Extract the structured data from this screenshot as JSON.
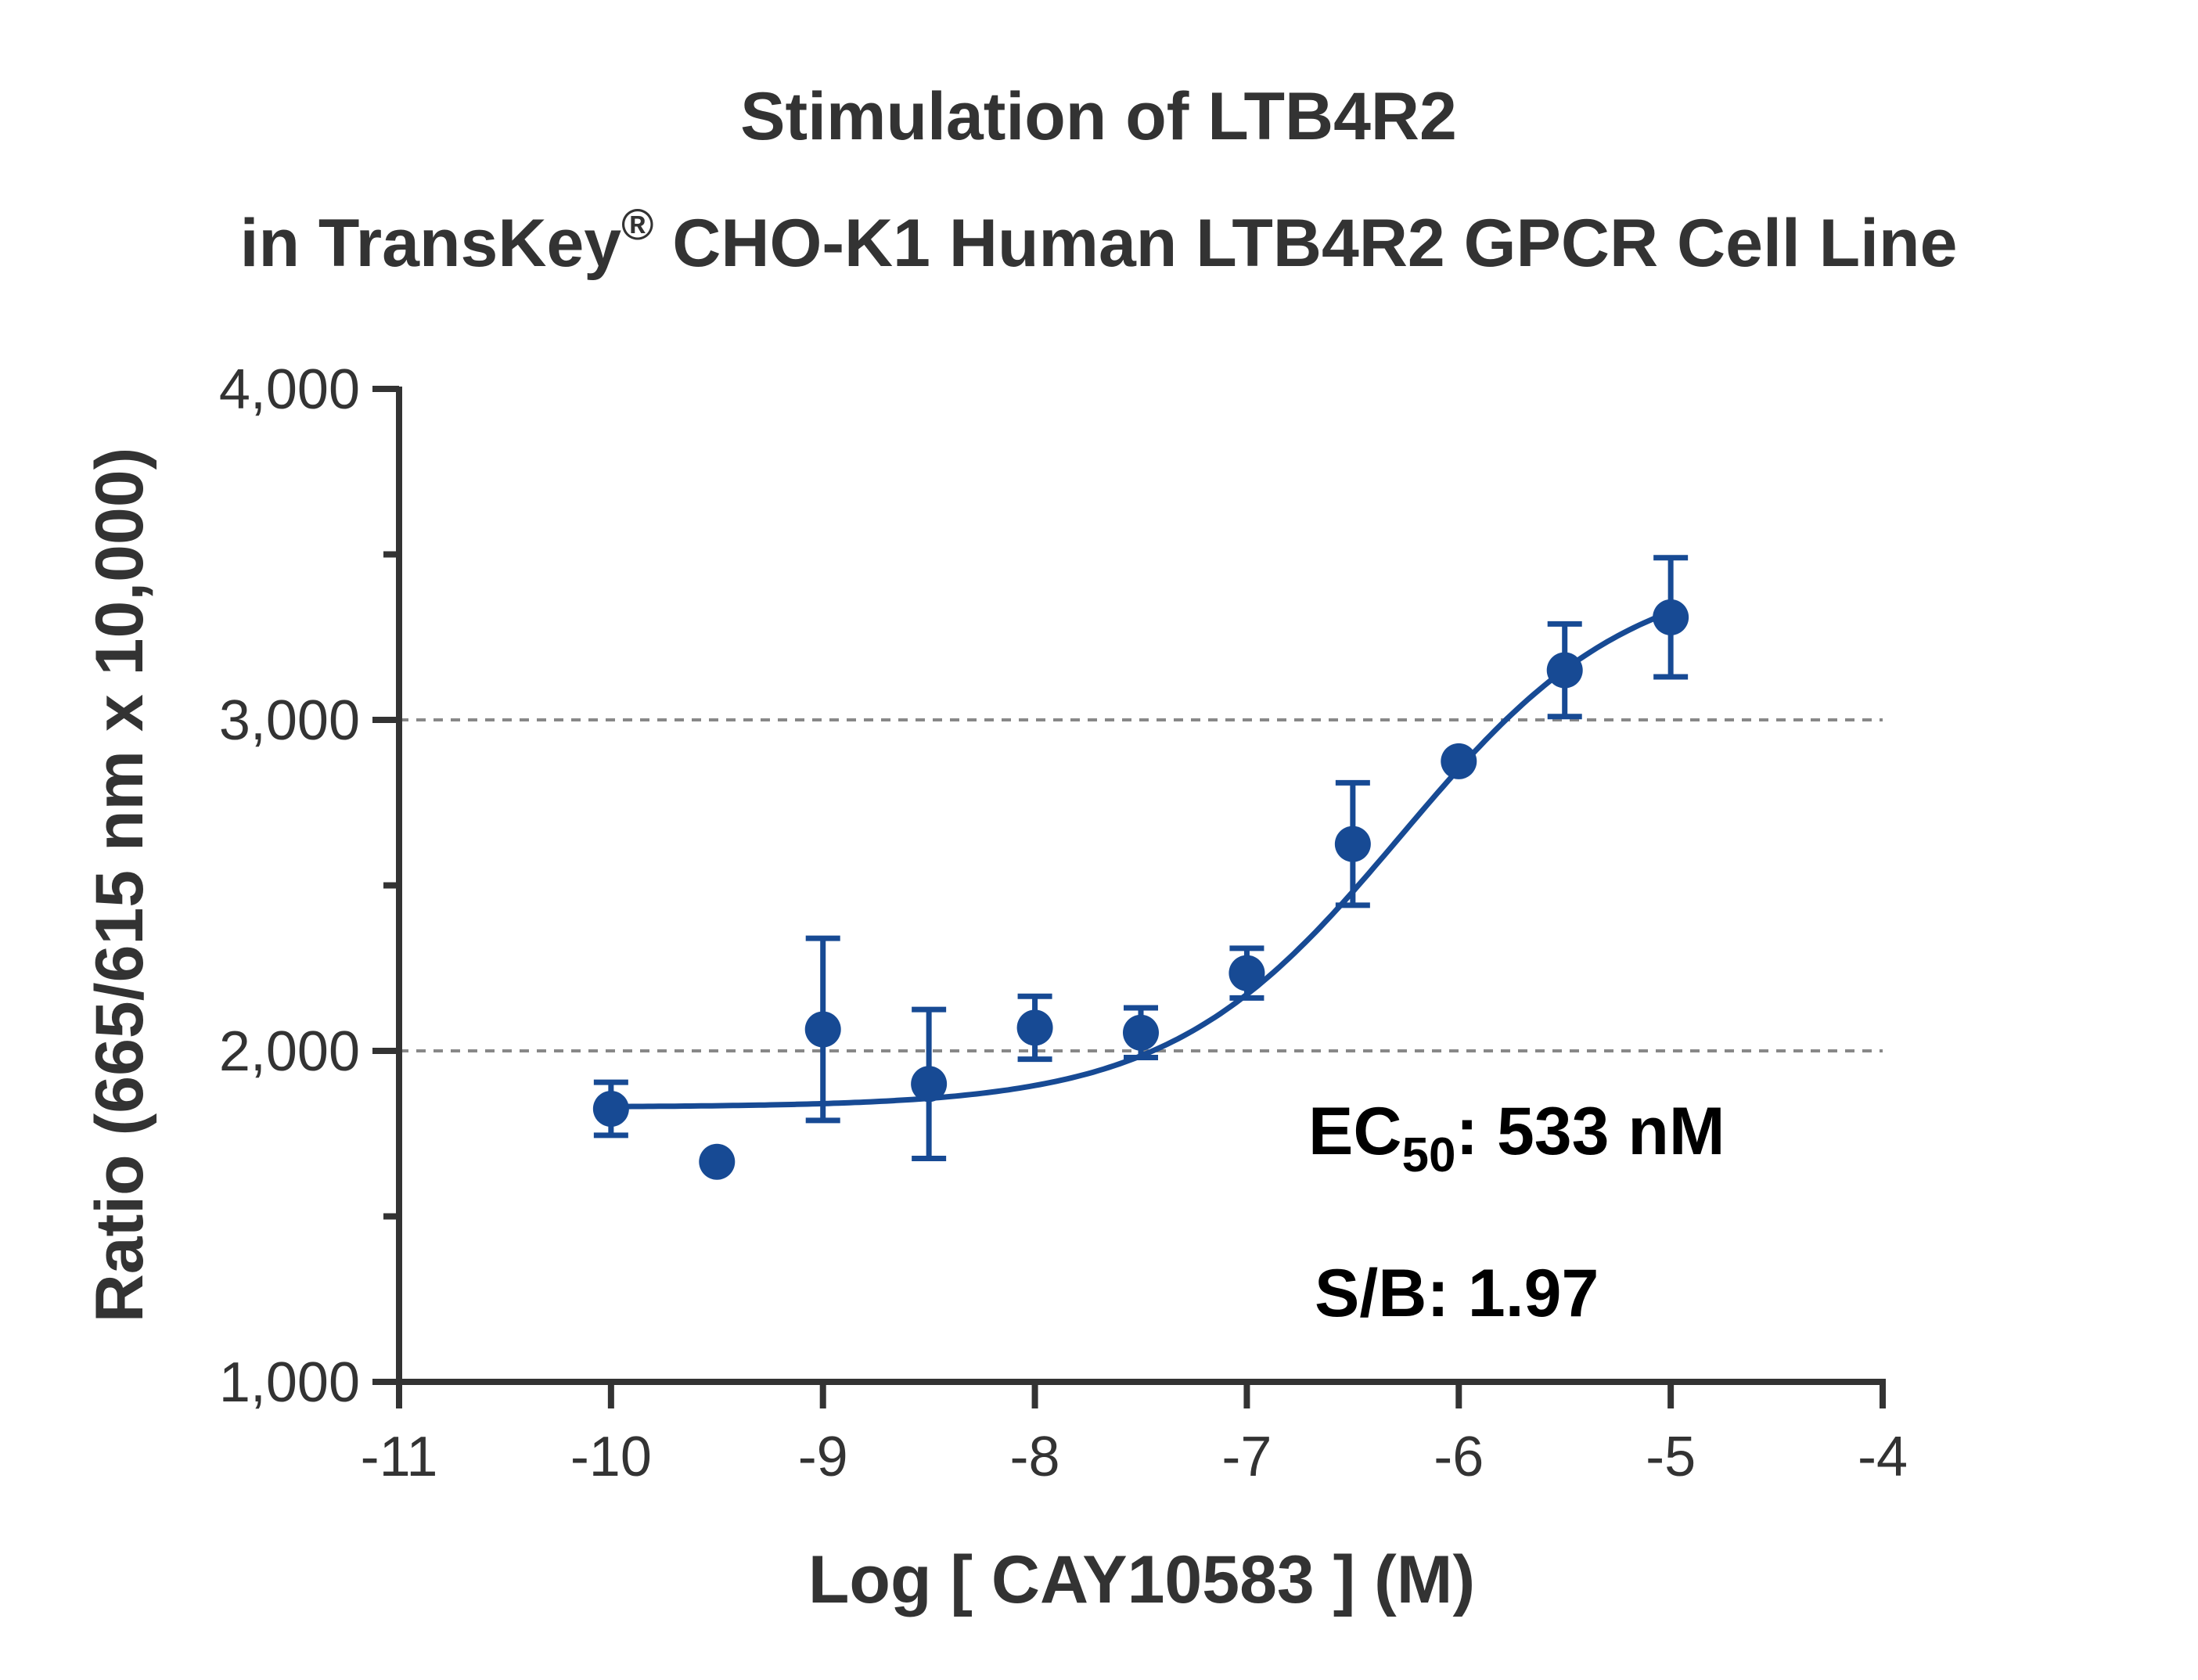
{
  "chart_data": {
    "type": "scatter",
    "title_line1": "Stimulation of  LTB4R2",
    "title_line2_prefix": "in TransKey",
    "title_line2_sup": "®",
    "title_line2_suffix": " CHO-K1 Human LTB4R2 GPCR Cell Line",
    "xlabel": "Log [ CAY10583 ]  (M)",
    "ylabel": "Ratio (665/615 nm x 10,000)",
    "xlim": [
      -11,
      -4
    ],
    "ylim": [
      1000,
      4000
    ],
    "x_ticks": [
      -11,
      -10,
      -9,
      -8,
      -7,
      -6,
      -5,
      -4
    ],
    "x_tick_labels": [
      "-11",
      "-10",
      "-9",
      "-8",
      "-7",
      "-6",
      "-5",
      "-4"
    ],
    "y_major_ticks": [
      1000,
      2000,
      3000,
      4000
    ],
    "y_minor_ticks": [
      1500,
      2500,
      3500
    ],
    "y_tick_labels": [
      "1,000",
      "2,000",
      "3,000",
      "4,000"
    ],
    "grid_lines_y": [
      2000,
      3000
    ],
    "series": [
      {
        "x": [
          -10,
          -9.5,
          -9,
          -8.5,
          -8,
          -7.5,
          -7,
          -6.5,
          -6,
          -5.5,
          -5
        ],
        "y": [
          1825,
          1665,
          2065,
          1900,
          2070,
          2055,
          2235,
          2625,
          2875,
          3150,
          3310
        ],
        "error": [
          80,
          0,
          275,
          225,
          95,
          75,
          75,
          185,
          0,
          140,
          180
        ]
      }
    ],
    "fit_curve": {
      "bottom": 1830,
      "top": 3470,
      "log_ec50": -6.273,
      "hill": 0.8
    },
    "annotations": {
      "ec50_prefix": "EC",
      "ec50_sub": "50",
      "ec50_suffix": ": 533 nM",
      "sb": "S/B: 1.97"
    },
    "colors": {
      "series": "#174a94",
      "axis": "#333333",
      "grid": "#888888",
      "text": "#333333"
    }
  }
}
